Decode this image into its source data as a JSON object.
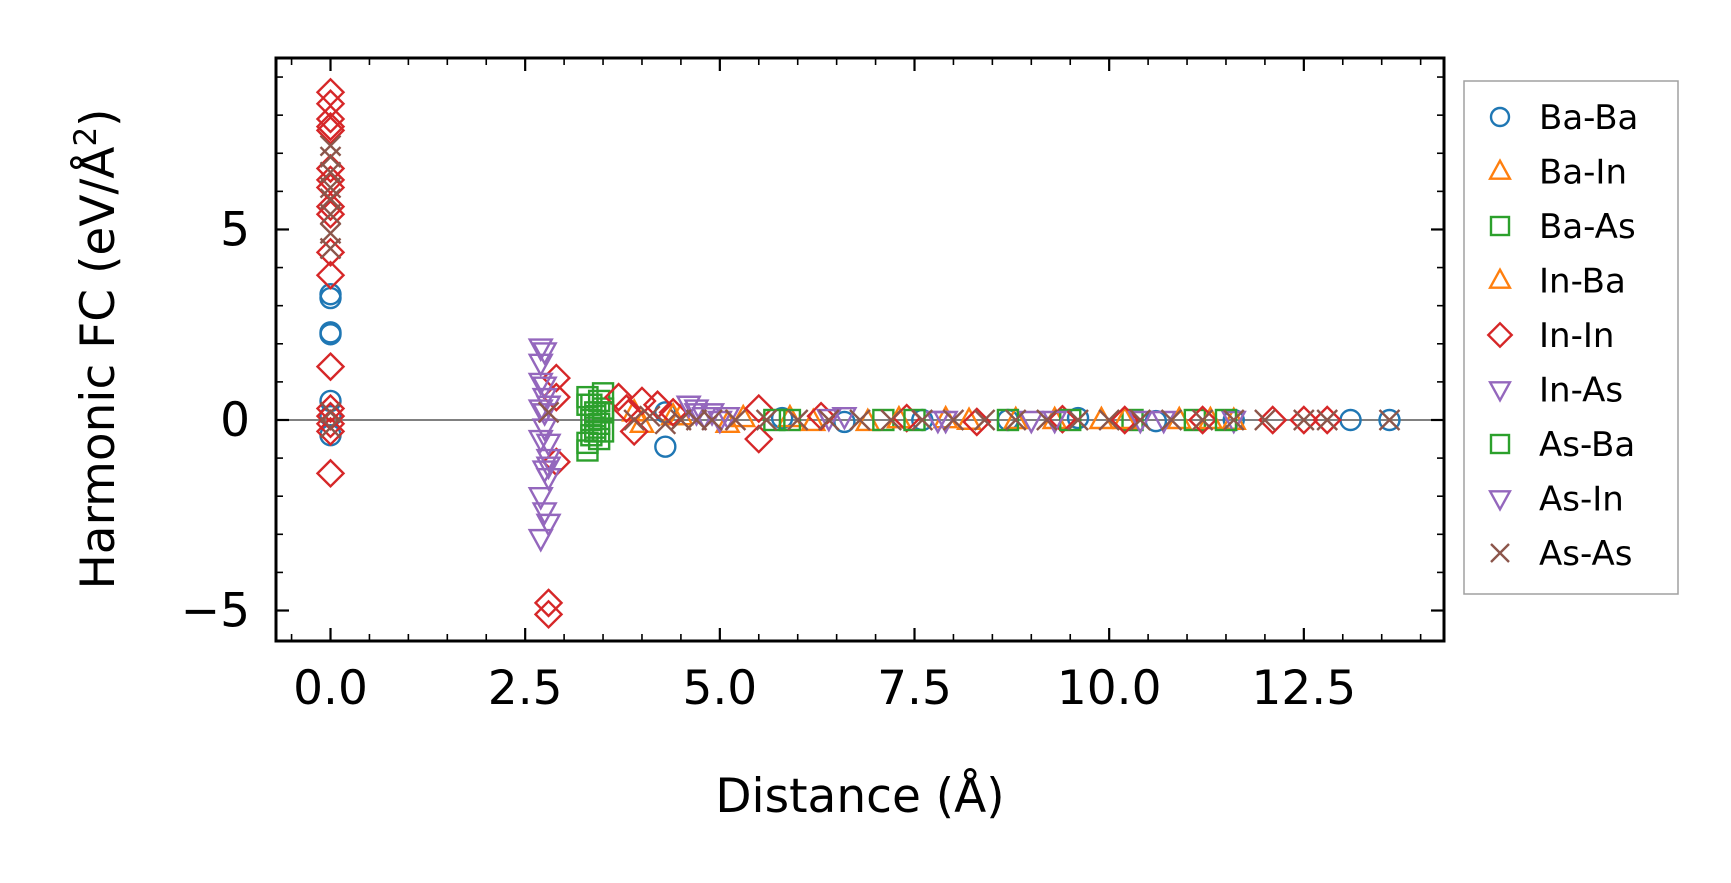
{
  "chart_data": {
    "type": "scatter",
    "title": "",
    "xlabel": "Distance (Å)",
    "ylabel_main": "Harmonic FC (eV/Å",
    "ylabel_sup": "2",
    "ylabel_close": ")",
    "xlim": [
      -0.7,
      14.3
    ],
    "ylim": [
      -5.8,
      9.5
    ],
    "xticks": [
      0.0,
      2.5,
      5.0,
      7.5,
      10.0,
      12.5
    ],
    "xtick_labels": [
      "0.0",
      "2.5",
      "5.0",
      "7.5",
      "10.0",
      "12.5"
    ],
    "yticks": [
      -5,
      0,
      5
    ],
    "ytick_labels": [
      "−5",
      "0",
      "5"
    ],
    "zero_line": 0,
    "legend_position": "right-outside",
    "series": [
      {
        "name": "Ba-Ba",
        "color": "#1f77b4",
        "marker": "circle",
        "x": [
          0.0,
          0.0,
          0.0,
          0.0,
          0.0,
          0.0,
          0.0,
          4.3,
          4.3,
          5.8,
          6.6,
          7.6,
          8.7,
          9.6,
          10.6,
          11.6,
          13.1,
          13.6
        ],
        "y": [
          3.3,
          3.2,
          2.3,
          2.25,
          0.5,
          0.1,
          -0.4,
          -0.7,
          0.2,
          0.05,
          -0.05,
          0.0,
          0.0,
          0.05,
          -0.03,
          0.0,
          0.0,
          0.0
        ]
      },
      {
        "name": "Ba-In",
        "color": "#ff7f0e",
        "marker": "triangle-up",
        "x": [
          3.9,
          4.4,
          5.1,
          5.9,
          6.9,
          7.9,
          8.8,
          9.9,
          10.9,
          11.6
        ],
        "y": [
          0.2,
          0.1,
          -0.1,
          0.05,
          -0.05,
          0.02,
          0.0,
          0.0,
          0.0,
          -0.02
        ]
      },
      {
        "name": "Ba-As",
        "color": "#2ca02c",
        "marker": "square",
        "x": [
          3.3,
          3.3,
          3.35,
          3.35,
          3.4,
          3.4,
          3.45,
          3.45,
          3.5,
          3.5,
          3.35,
          3.4,
          3.45,
          3.3,
          3.5,
          5.9,
          7.1,
          8.7,
          10.3,
          11.1
        ],
        "y": [
          0.6,
          -0.6,
          0.4,
          -0.4,
          0.2,
          -0.2,
          0.5,
          -0.5,
          0.3,
          -0.3,
          0.0,
          0.1,
          -0.1,
          -0.8,
          0.7,
          0.0,
          0.0,
          0.0,
          0.0,
          0.0
        ]
      },
      {
        "name": "In-Ba",
        "color": "#ff7f0e",
        "marker": "triangle-up",
        "x": [
          4.0,
          4.5,
          5.3,
          6.2,
          7.3,
          8.2,
          9.3,
          10.2,
          11.3
        ],
        "y": [
          -0.1,
          0.1,
          0.05,
          -0.05,
          0.02,
          -0.02,
          0.0,
          0.0,
          0.0
        ]
      },
      {
        "name": "In-In",
        "color": "#d62728",
        "marker": "diamond",
        "x": [
          0.0,
          0.0,
          0.0,
          0.0,
          0.0,
          0.0,
          0.0,
          0.0,
          0.0,
          0.0,
          0.0,
          0.0,
          0.0,
          0.0,
          0.0,
          0.0,
          0.0,
          0.0,
          2.8,
          2.8,
          2.9,
          2.9,
          2.9,
          3.7,
          3.8,
          3.9,
          4.0,
          4.2,
          4.4,
          5.5,
          5.5,
          6.3,
          7.4,
          8.3,
          9.4,
          10.2,
          11.2,
          12.1,
          12.5,
          12.8
        ],
        "y": [
          8.6,
          8.3,
          7.9,
          7.7,
          7.6,
          6.6,
          6.3,
          6.1,
          5.6,
          5.4,
          4.4,
          3.8,
          1.4,
          0.3,
          0.1,
          -0.1,
          -0.3,
          -1.4,
          -4.8,
          -5.1,
          1.1,
          0.6,
          -1.1,
          0.6,
          0.3,
          -0.3,
          0.5,
          0.4,
          0.2,
          0.3,
          -0.5,
          0.1,
          0.05,
          -0.05,
          0.02,
          0.0,
          0.0,
          0.0,
          0.0,
          0.0
        ]
      },
      {
        "name": "In-As",
        "color": "#9467bd",
        "marker": "triangle-down",
        "x": [
          2.7,
          2.7,
          2.7,
          2.75,
          2.75,
          2.75,
          2.8,
          2.8,
          2.8,
          2.7,
          2.75,
          2.8,
          2.7,
          2.75,
          2.8,
          2.7,
          2.75,
          4.6,
          4.7,
          4.8,
          4.9,
          5.0,
          6.6,
          7.8,
          9.0,
          10.4,
          11.6
        ],
        "y": [
          1.9,
          1.5,
          1.0,
          0.6,
          0.2,
          -0.2,
          -0.6,
          -1.0,
          -1.5,
          -2.0,
          -2.4,
          -2.7,
          -3.1,
          0.9,
          0.4,
          -0.5,
          -1.3,
          0.4,
          0.3,
          0.1,
          0.2,
          0.0,
          0.1,
          0.0,
          0.0,
          0.0,
          0.0
        ]
      },
      {
        "name": "As-Ba",
        "color": "#2ca02c",
        "marker": "square",
        "x": [
          3.3,
          3.4,
          3.5,
          5.7,
          7.5,
          9.5,
          11.5
        ],
        "y": [
          0.4,
          -0.3,
          0.2,
          0.0,
          0.0,
          0.0,
          0.0
        ]
      },
      {
        "name": "As-In",
        "color": "#9467bd",
        "marker": "triangle-down",
        "x": [
          2.75,
          2.8,
          2.7,
          4.7,
          5.1,
          6.4,
          7.9,
          9.3,
          10.7
        ],
        "y": [
          1.8,
          -1.2,
          0.3,
          0.2,
          0.1,
          0.05,
          0.0,
          0.0,
          0.0
        ]
      },
      {
        "name": "As-As",
        "color": "#8c564b",
        "marker": "x",
        "x": [
          0.0,
          0.0,
          0.0,
          0.0,
          0.0,
          0.0,
          0.0,
          0.0,
          0.0,
          0.0,
          2.8,
          3.9,
          4.1,
          4.3,
          4.5,
          4.7,
          4.9,
          5.2,
          5.6,
          6.0,
          6.4,
          6.8,
          7.2,
          7.6,
          8.0,
          8.4,
          8.8,
          9.2,
          9.6,
          10.0,
          10.4,
          10.8,
          11.2,
          11.6,
          12.0,
          12.5,
          12.8,
          13.6
        ],
        "y": [
          7.2,
          6.9,
          6.5,
          6.1,
          5.8,
          5.4,
          4.9,
          4.5,
          0.2,
          -0.2,
          0.2,
          0.0,
          0.1,
          -0.1,
          0.0,
          0.0,
          0.0,
          0.0,
          0.0,
          0.0,
          0.0,
          0.0,
          0.0,
          0.0,
          0.0,
          0.0,
          0.0,
          0.0,
          0.0,
          0.0,
          0.0,
          0.0,
          0.0,
          0.0,
          0.0,
          0.0,
          0.0,
          0.0
        ]
      }
    ]
  }
}
